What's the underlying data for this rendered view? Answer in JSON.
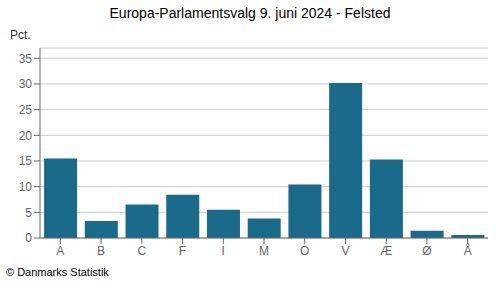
{
  "chart_data": {
    "type": "bar",
    "title": "Europa-Parlamentsvalg 9. juni 2024 - Felsted",
    "categories": [
      "A",
      "B",
      "C",
      "F",
      "I",
      "M",
      "O",
      "V",
      "Æ",
      "Ø",
      "Å"
    ],
    "values": [
      15.5,
      3.3,
      6.5,
      8.4,
      5.5,
      3.8,
      10.4,
      30.2,
      15.3,
      1.4,
      0.6
    ],
    "color": "#1a6b8a",
    "y_label": "Pct.",
    "annotations": [
      "© Danmarks Statistik"
    ],
    "ylim": [
      0,
      37
    ],
    "yticks": [
      0,
      5,
      10,
      15,
      20,
      25,
      30,
      35
    ],
    "grid": true
  }
}
